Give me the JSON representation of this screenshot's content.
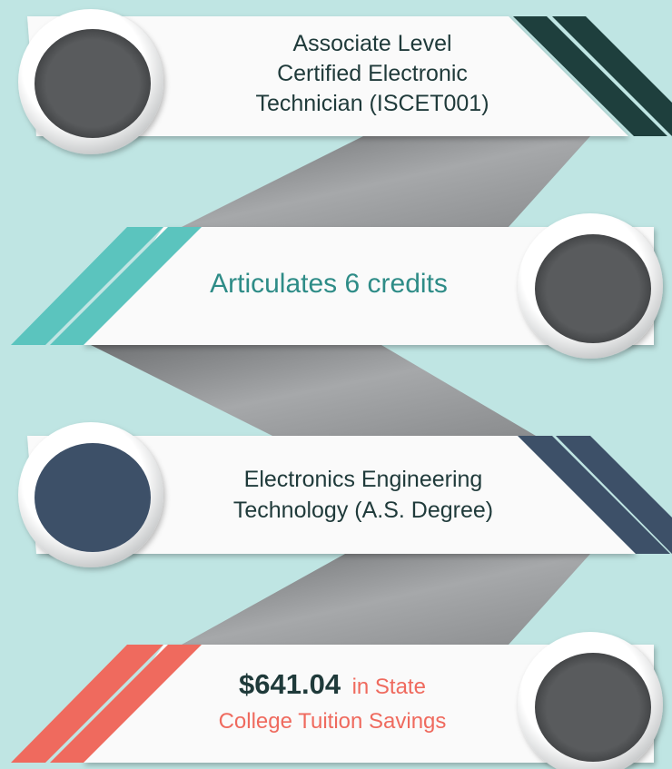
{
  "steps": [
    {
      "lines": [
        "Associate Level",
        "Certified Electronic",
        "Technician (ISCET001)"
      ]
    },
    {
      "lines": [
        "Articulates 6 credits"
      ]
    },
    {
      "lines": [
        "Electronics Engineering",
        "Technology (A.S. Degree)"
      ]
    },
    {
      "amount": "$641.04",
      "lines": [
        "in State",
        "College Tuition Savings"
      ]
    }
  ]
}
